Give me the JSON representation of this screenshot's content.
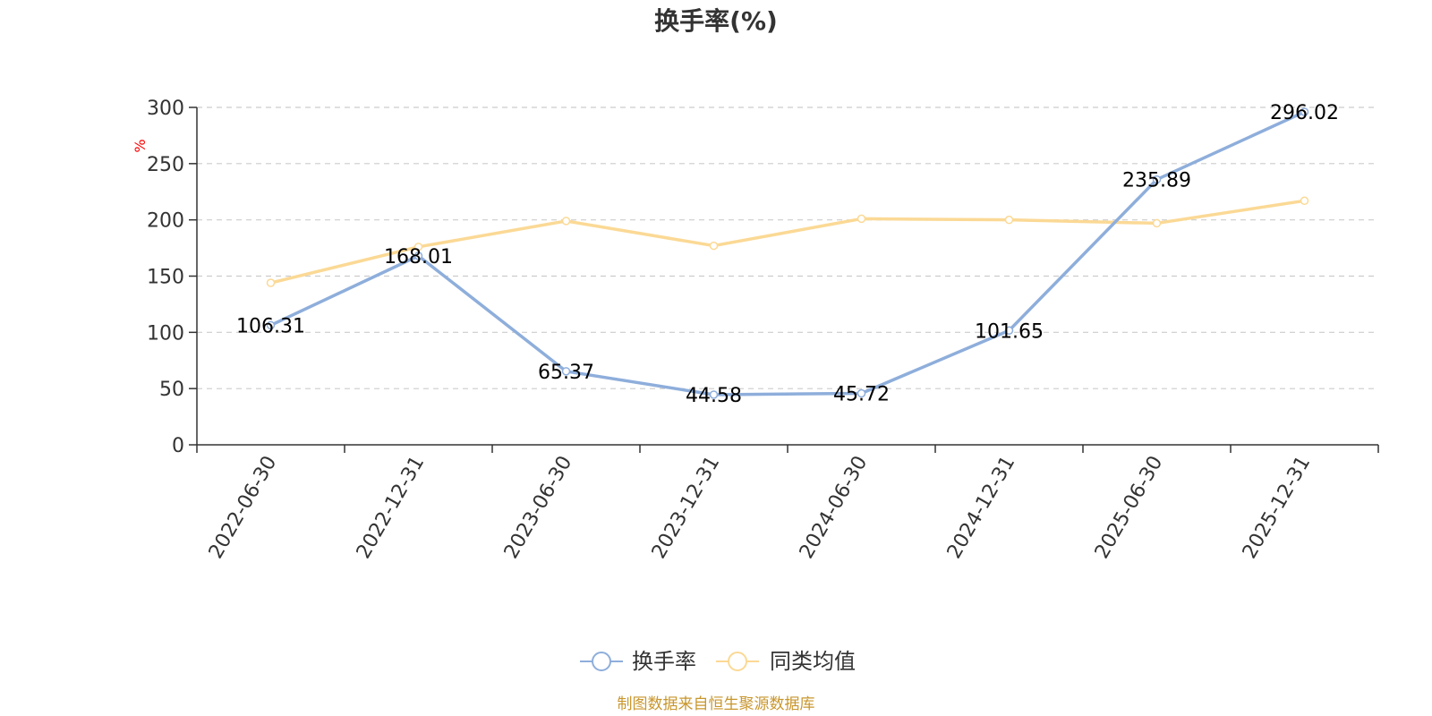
{
  "colors": {
    "series1": "#8eaedb",
    "series2": "#fbd995",
    "axis": "#333333",
    "grid": "#cccccc",
    "unit": "#ff0000",
    "source": "#c8962d"
  },
  "chart_data": {
    "type": "line",
    "title": "换手率(%)",
    "ylabel": "%",
    "xlabel": "",
    "ylim": [
      0,
      300
    ],
    "yticks": [
      0,
      50,
      100,
      150,
      200,
      250,
      300
    ],
    "grid": true,
    "legend_position": "bottom-center",
    "categories": [
      "2022-06-30",
      "2022-12-31",
      "2023-06-30",
      "2023-12-31",
      "2024-06-30",
      "2024-12-31",
      "2025-06-30",
      "2025-12-31"
    ],
    "series": [
      {
        "name": "换手率",
        "values": [
          106.31,
          168.01,
          65.37,
          44.58,
          45.72,
          101.65,
          235.89,
          296.02
        ],
        "labels": [
          "106.31",
          "168.01",
          "65.37",
          "44.58",
          "45.72",
          "101.65",
          "235.89",
          "296.02"
        ]
      },
      {
        "name": "同类均值",
        "values": [
          144,
          176,
          199,
          177,
          201,
          200,
          197,
          217
        ]
      }
    ]
  },
  "source_text": "制图数据来自恒生聚源数据库"
}
